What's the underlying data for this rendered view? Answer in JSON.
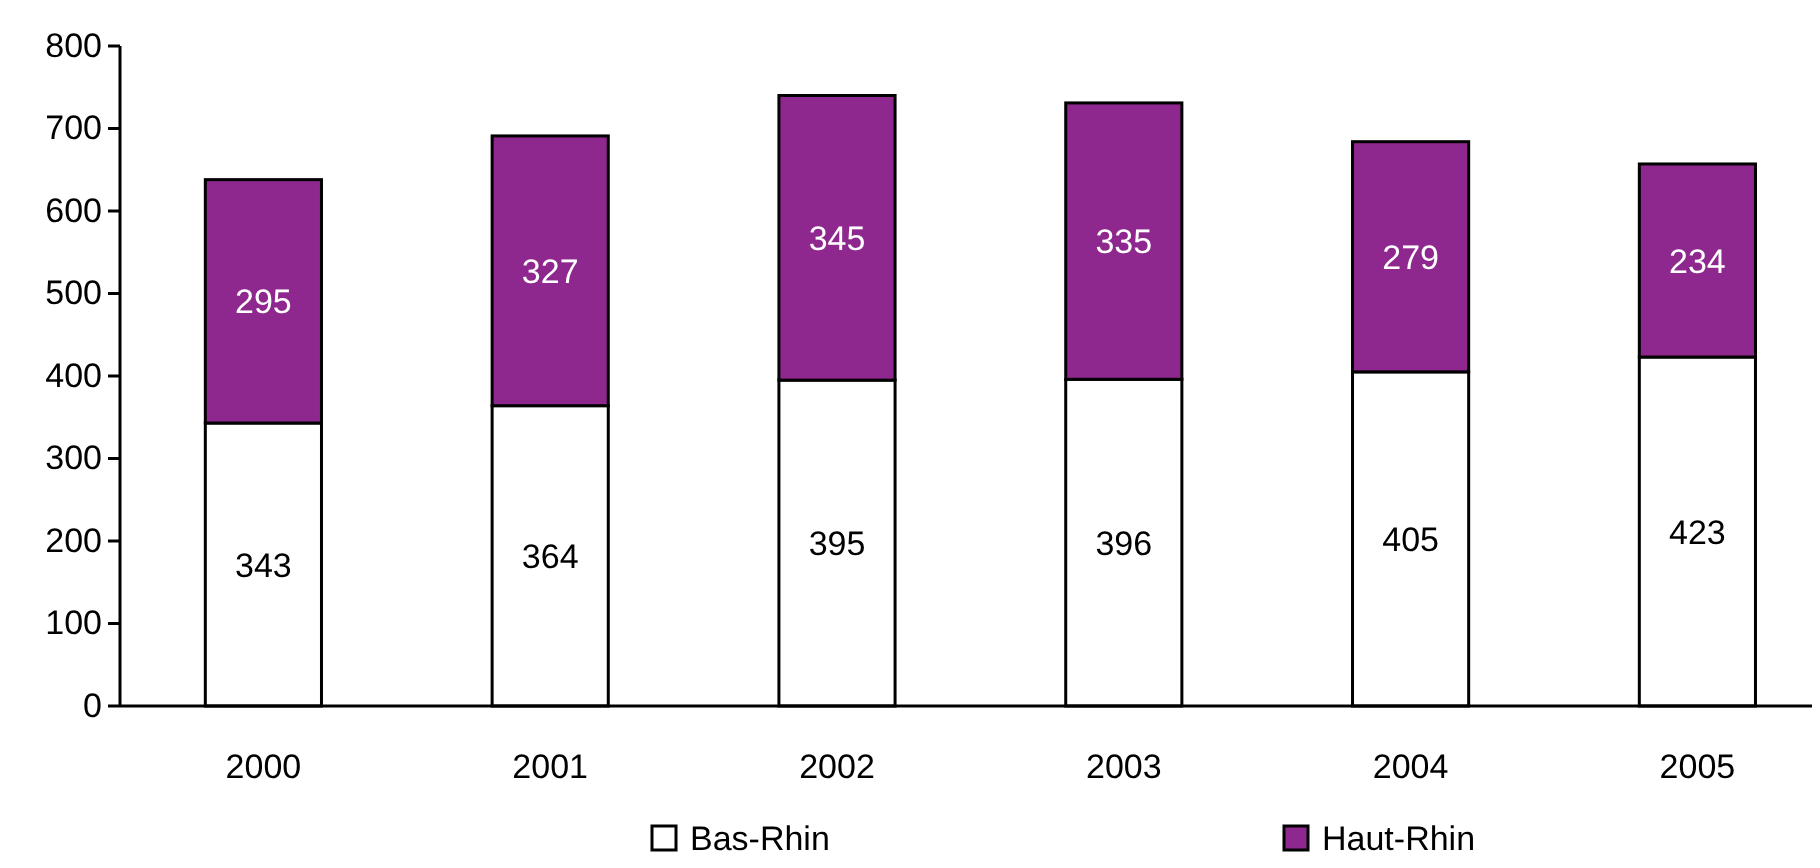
{
  "chart_data": {
    "type": "bar",
    "stacked": true,
    "categories": [
      "2000",
      "2001",
      "2002",
      "2003",
      "2004",
      "2005"
    ],
    "series": [
      {
        "name": "Bas-Rhin",
        "color": "#ffffff",
        "values": [
          343,
          364,
          395,
          396,
          405,
          423
        ]
      },
      {
        "name": "Haut-Rhin",
        "color": "#8e278e",
        "values": [
          295,
          327,
          345,
          335,
          279,
          234
        ]
      }
    ],
    "ylim": [
      0,
      800
    ],
    "yticks": [
      0,
      100,
      200,
      300,
      400,
      500,
      600,
      700,
      800
    ],
    "grid": false,
    "legend": "bottom",
    "data_labels": true
  }
}
